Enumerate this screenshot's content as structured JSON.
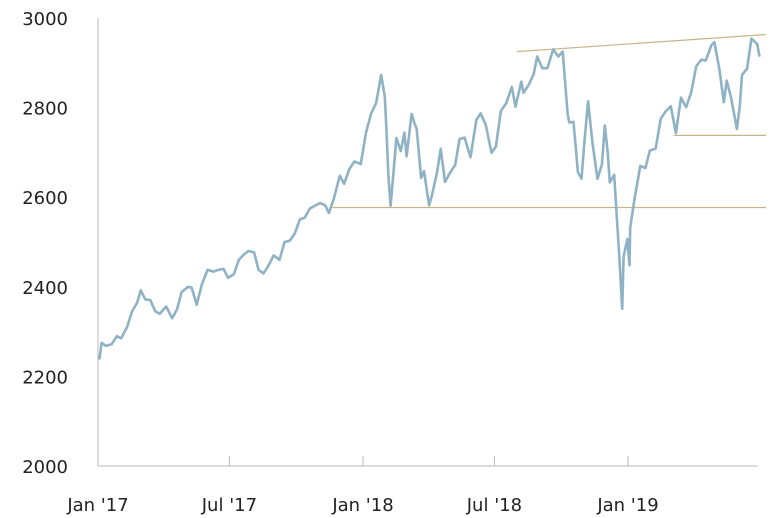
{
  "chart_data": {
    "type": "line",
    "title": "",
    "xlabel": "",
    "ylabel": "",
    "ylim": [
      2000,
      3000
    ],
    "xlim": [
      "2017-01-01",
      "2019-06-01"
    ],
    "grid": false,
    "y_ticks": [
      2000,
      2200,
      2400,
      2600,
      2800,
      3000
    ],
    "y_tick_labels": [
      "2000",
      "2200",
      "2400",
      "2600",
      "2800",
      "3000"
    ],
    "x_ticks": [
      "2017-01-01",
      "2017-07-01",
      "2018-01-01",
      "2018-07-01",
      "2019-01-01"
    ],
    "x_tick_labels": [
      "Jan '17",
      "Jul '17",
      "Jan '18",
      "Jul '18",
      "Jan '19"
    ],
    "series": [
      {
        "name": "",
        "color": "#8fb3c4",
        "points": [
          [
            "2017-01-03",
            2240
          ],
          [
            "2017-01-06",
            2275
          ],
          [
            "2017-01-12",
            2268
          ],
          [
            "2017-01-20",
            2272
          ],
          [
            "2017-01-27",
            2290
          ],
          [
            "2017-02-02",
            2285
          ],
          [
            "2017-02-10",
            2310
          ],
          [
            "2017-02-17",
            2345
          ],
          [
            "2017-02-24",
            2365
          ],
          [
            "2017-03-01",
            2392
          ],
          [
            "2017-03-07",
            2372
          ],
          [
            "2017-03-14",
            2370
          ],
          [
            "2017-03-21",
            2345
          ],
          [
            "2017-03-27",
            2340
          ],
          [
            "2017-04-05",
            2356
          ],
          [
            "2017-04-13",
            2330
          ],
          [
            "2017-04-20",
            2350
          ],
          [
            "2017-04-26",
            2388
          ],
          [
            "2017-05-05",
            2400
          ],
          [
            "2017-05-10",
            2398
          ],
          [
            "2017-05-17",
            2360
          ],
          [
            "2017-05-24",
            2405
          ],
          [
            "2017-06-01",
            2438
          ],
          [
            "2017-06-09",
            2434
          ],
          [
            "2017-06-16",
            2438
          ],
          [
            "2017-06-23",
            2440
          ],
          [
            "2017-06-29",
            2420
          ],
          [
            "2017-07-07",
            2428
          ],
          [
            "2017-07-14",
            2460
          ],
          [
            "2017-07-21",
            2472
          ],
          [
            "2017-07-27",
            2480
          ],
          [
            "2017-08-04",
            2477
          ],
          [
            "2017-08-10",
            2438
          ],
          [
            "2017-08-17",
            2430
          ],
          [
            "2017-08-23",
            2445
          ],
          [
            "2017-08-31",
            2470
          ],
          [
            "2017-09-08",
            2460
          ],
          [
            "2017-09-15",
            2500
          ],
          [
            "2017-09-22",
            2503
          ],
          [
            "2017-09-29",
            2519
          ],
          [
            "2017-10-06",
            2550
          ],
          [
            "2017-10-13",
            2555
          ],
          [
            "2017-10-20",
            2575
          ],
          [
            "2017-10-27",
            2581
          ],
          [
            "2017-11-03",
            2587
          ],
          [
            "2017-11-10",
            2582
          ],
          [
            "2017-11-15",
            2565
          ],
          [
            "2017-11-22",
            2598
          ],
          [
            "2017-11-30",
            2648
          ],
          [
            "2017-12-06",
            2630
          ],
          [
            "2017-12-13",
            2662
          ],
          [
            "2017-12-20",
            2680
          ],
          [
            "2017-12-29",
            2674
          ],
          [
            "2018-01-05",
            2743
          ],
          [
            "2018-01-12",
            2786
          ],
          [
            "2018-01-19",
            2810
          ],
          [
            "2018-01-26",
            2873
          ],
          [
            "2018-01-31",
            2824
          ],
          [
            "2018-02-02",
            2762
          ],
          [
            "2018-02-05",
            2648
          ],
          [
            "2018-02-08",
            2581
          ],
          [
            "2018-02-12",
            2656
          ],
          [
            "2018-02-16",
            2732
          ],
          [
            "2018-02-22",
            2703
          ],
          [
            "2018-02-27",
            2744
          ],
          [
            "2018-03-02",
            2691
          ],
          [
            "2018-03-09",
            2786
          ],
          [
            "2018-03-13",
            2765
          ],
          [
            "2018-03-16",
            2752
          ],
          [
            "2018-03-22",
            2643
          ],
          [
            "2018-03-26",
            2658
          ],
          [
            "2018-04-02",
            2582
          ],
          [
            "2018-04-06",
            2605
          ],
          [
            "2018-04-13",
            2656
          ],
          [
            "2018-04-18",
            2708
          ],
          [
            "2018-04-24",
            2634
          ],
          [
            "2018-05-01",
            2655
          ],
          [
            "2018-05-08",
            2672
          ],
          [
            "2018-05-14",
            2730
          ],
          [
            "2018-05-21",
            2733
          ],
          [
            "2018-05-29",
            2689
          ],
          [
            "2018-06-06",
            2772
          ],
          [
            "2018-06-12",
            2787
          ],
          [
            "2018-06-19",
            2762
          ],
          [
            "2018-06-27",
            2699
          ],
          [
            "2018-07-03",
            2713
          ],
          [
            "2018-07-10",
            2793
          ],
          [
            "2018-07-17",
            2809
          ],
          [
            "2018-07-25",
            2846
          ],
          [
            "2018-07-30",
            2802
          ],
          [
            "2018-08-07",
            2858
          ],
          [
            "2018-08-10",
            2833
          ],
          [
            "2018-08-17",
            2850
          ],
          [
            "2018-08-24",
            2874
          ],
          [
            "2018-08-29",
            2914
          ],
          [
            "2018-09-05",
            2888
          ],
          [
            "2018-09-12",
            2888
          ],
          [
            "2018-09-20",
            2930
          ],
          [
            "2018-09-27",
            2914
          ],
          [
            "2018-10-03",
            2925
          ],
          [
            "2018-10-05",
            2885
          ],
          [
            "2018-10-10",
            2785
          ],
          [
            "2018-10-12",
            2767
          ],
          [
            "2018-10-18",
            2768
          ],
          [
            "2018-10-24",
            2656
          ],
          [
            "2018-10-29",
            2641
          ],
          [
            "2018-11-02",
            2723
          ],
          [
            "2018-11-07",
            2814
          ],
          [
            "2018-11-13",
            2722
          ],
          [
            "2018-11-20",
            2641
          ],
          [
            "2018-11-26",
            2673
          ],
          [
            "2018-11-30",
            2760
          ],
          [
            "2018-12-04",
            2700
          ],
          [
            "2018-12-07",
            2633
          ],
          [
            "2018-12-13",
            2650
          ],
          [
            "2018-12-17",
            2545
          ],
          [
            "2018-12-20",
            2467
          ],
          [
            "2018-12-24",
            2351
          ],
          [
            "2018-12-26",
            2467
          ],
          [
            "2018-12-31",
            2507
          ],
          [
            "2019-01-03",
            2448
          ],
          [
            "2019-01-04",
            2532
          ],
          [
            "2019-01-10",
            2596
          ],
          [
            "2019-01-18",
            2670
          ],
          [
            "2019-01-25",
            2665
          ],
          [
            "2019-01-31",
            2704
          ],
          [
            "2019-02-08",
            2708
          ],
          [
            "2019-02-15",
            2775
          ],
          [
            "2019-02-22",
            2792
          ],
          [
            "2019-03-01",
            2803
          ],
          [
            "2019-03-08",
            2743
          ],
          [
            "2019-03-15",
            2822
          ],
          [
            "2019-03-22",
            2801
          ],
          [
            "2019-03-29",
            2834
          ],
          [
            "2019-04-05",
            2892
          ],
          [
            "2019-04-12",
            2907
          ],
          [
            "2019-04-18",
            2905
          ],
          [
            "2019-04-26",
            2940
          ],
          [
            "2019-04-30",
            2946
          ],
          [
            "2019-05-07",
            2884
          ],
          [
            "2019-05-13",
            2812
          ],
          [
            "2019-05-17",
            2860
          ],
          [
            "2019-05-23",
            2822
          ],
          [
            "2019-05-31",
            2752
          ],
          [
            "2019-06-04",
            2804
          ],
          [
            "2019-06-07",
            2873
          ],
          [
            "2019-06-14",
            2887
          ],
          [
            "2019-06-20",
            2954
          ],
          [
            "2019-06-28",
            2942
          ],
          [
            "2019-07-01",
            2916
          ]
        ]
      }
    ],
    "annotations": [
      {
        "kind": "trendline",
        "color": "#c9b48a",
        "from": [
          "2018-08-01",
          2925
        ],
        "to": [
          "2019-07-10",
          2963
        ]
      },
      {
        "kind": "horizontal",
        "color": "#c9b48a",
        "from": [
          "2017-11-20",
          2577
        ],
        "to": [
          "2019-07-10",
          2577
        ]
      },
      {
        "kind": "horizontal",
        "color": "#c9b48a",
        "from": [
          "2019-03-05",
          2738
        ],
        "to": [
          "2019-07-10",
          2738
        ]
      }
    ]
  }
}
